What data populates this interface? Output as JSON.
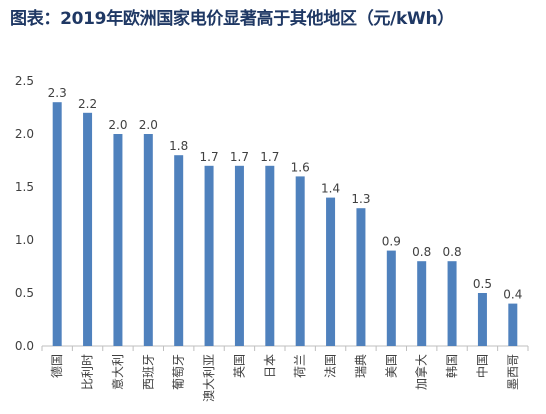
{
  "title": "图表：2019年欧洲国家电价显著高于其他地区（元/kWh）",
  "colors": {
    "bar": "#4f81bd",
    "axis": "#bfbfbf",
    "text": "#404040",
    "title": "#1f3864"
  },
  "chart_data": {
    "type": "bar",
    "title": "图表：2019年欧洲国家电价显著高于其他地区（元/kWh）",
    "categories": [
      "德国",
      "比利时",
      "意大利",
      "西班牙",
      "葡萄牙",
      "澳大利亚",
      "英国",
      "日本",
      "荷兰",
      "法国",
      "瑞典",
      "美国",
      "加拿大",
      "韩国",
      "中国",
      "墨西哥"
    ],
    "values": [
      2.3,
      2.2,
      2.0,
      2.0,
      1.8,
      1.7,
      1.7,
      1.7,
      1.6,
      1.4,
      1.3,
      0.9,
      0.8,
      0.8,
      0.5,
      0.4
    ],
    "data_labels": [
      "2.3",
      "2.2",
      "2.0",
      "2.0",
      "1.8",
      "1.7",
      "1.7",
      "1.7",
      "1.6",
      "1.4",
      "1.3",
      "0.9",
      "0.8",
      "0.8",
      "0.5",
      "0.4"
    ],
    "yticks": [
      "0.0",
      "0.5",
      "1.0",
      "1.5",
      "2.0",
      "2.5"
    ],
    "ylim": [
      0,
      2.5
    ],
    "grid": false,
    "legend": "none",
    "xlabel": "",
    "ylabel": ""
  }
}
